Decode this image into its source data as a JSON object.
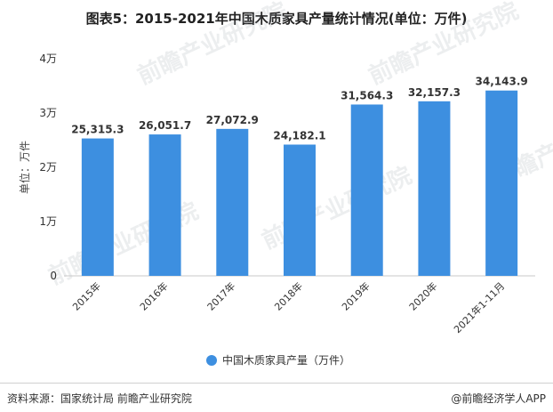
{
  "page": {
    "title": "图表5：2015-2021年中国木质家具产量统计情况(单位：万件)",
    "source": "资料来源：国家统计局 前瞻产业研究院",
    "brand": "@前瞻经济学人APP",
    "watermark": "前瞻产业研究院"
  },
  "chart_data": {
    "type": "bar",
    "title": "图表5：2015-2021年中国木质家具产量统计情况(单位：万件)",
    "ylabel": "单位：万件",
    "categories": [
      "2015年",
      "2016年",
      "2017年",
      "2018年",
      "2019年",
      "2020年",
      "2021年1-11月"
    ],
    "series": [
      {
        "name": "中国木质家具产量（万件）",
        "values": [
          25315.3,
          26051.7,
          27072.9,
          24182.1,
          31564.3,
          32157.3,
          34143.9
        ],
        "labels": [
          "25,315.3",
          "26,051.7",
          "27,072.9",
          "24,182.1",
          "31,564.3",
          "32,157.3",
          "34,143.9"
        ],
        "color": "#3d8fe0"
      }
    ],
    "ylim": [
      0,
      40000
    ],
    "yticks": [
      0,
      10000,
      20000,
      30000,
      40000
    ],
    "ytick_labels": [
      "0",
      "1万",
      "2万",
      "3万",
      "4万"
    ],
    "legend_position": "bottom",
    "grid": false
  }
}
